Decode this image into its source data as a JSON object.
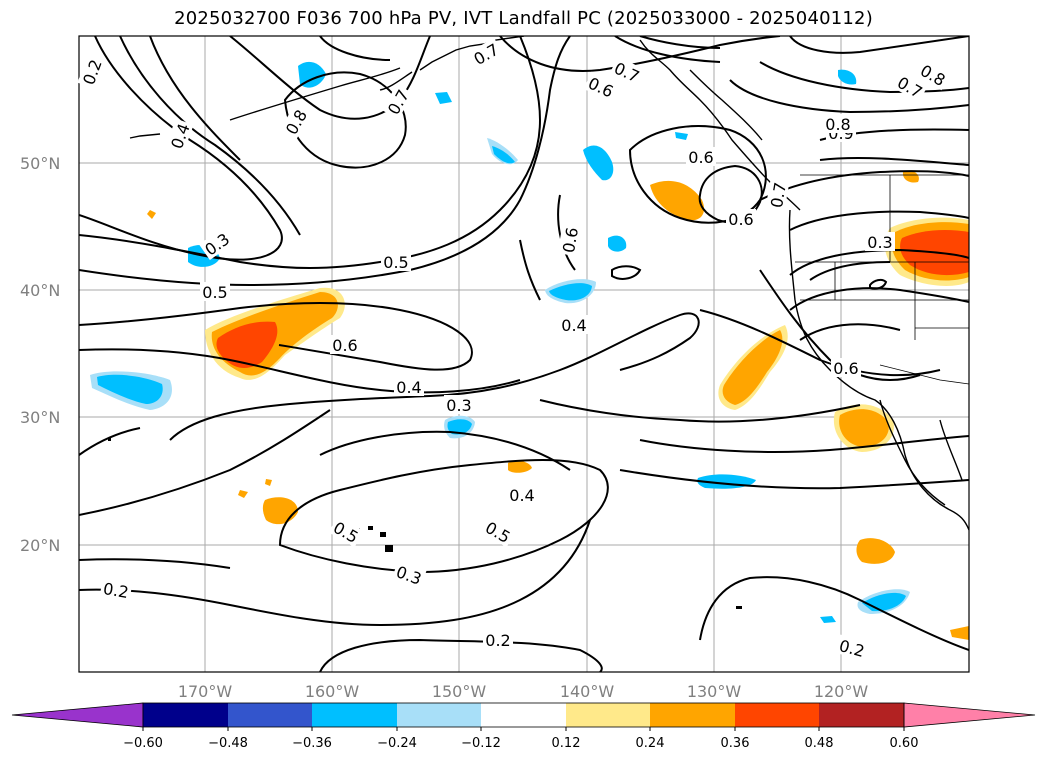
{
  "title": "2025032700 F036 700 hPa PV, IVT Landfall PC (2025033000 - 2025040112)",
  "map": {
    "lat_labels": [
      "50°N",
      "40°N",
      "30°N",
      "20°N"
    ],
    "lon_labels": [
      "170°W",
      "160°W",
      "150°W",
      "140°W",
      "130°W",
      "120°W"
    ],
    "contour_labels": [
      "0.2",
      "0.4",
      "0.8",
      "0.7",
      "0.7",
      "0.6",
      "0.7",
      "0.6",
      "0.6",
      "0.7",
      "0.9",
      "0.8",
      "0.6",
      "0.8",
      "0.7",
      "0.3",
      "0.5",
      "0.3",
      "0.5",
      "0.6",
      "0.4",
      "0.4",
      "0.3",
      "0.6",
      "0.4",
      "0.5",
      "0.5",
      "0.3",
      "0.2",
      "0.2",
      "0.2"
    ]
  },
  "colorbar": {
    "colors": [
      "#9933cc",
      "#00008b",
      "#3355cc",
      "#00bfff",
      "#a8dff8",
      "#ffffff",
      "#ffe98a",
      "#ffa500",
      "#ff4500",
      "#b22222",
      "#ff80a8"
    ],
    "ticks": [
      "−0.60",
      "−0.48",
      "−0.36",
      "−0.24",
      "−0.12",
      "0.12",
      "0.24",
      "0.36",
      "0.48",
      "0.60"
    ]
  },
  "legend_colors": {
    "pos_light": "#ffe98a",
    "pos_mid": "#ffa500",
    "pos_strong": "#ff4500",
    "neg_light": "#a8dff8",
    "neg_mid": "#00bfff"
  }
}
